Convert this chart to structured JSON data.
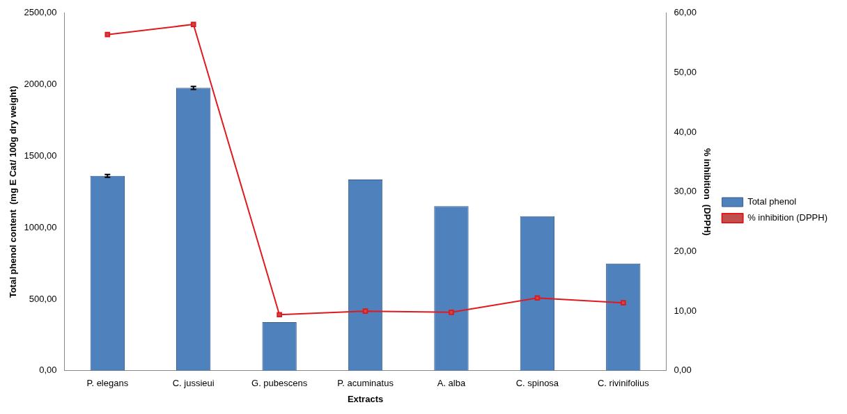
{
  "chart_data": {
    "type": "bar",
    "xlabel": "Extracts",
    "ylabel": "Total phenol content  (mg E Cat/ 100g dry weight)",
    "y2label": "% inhibition  (DPPH)",
    "categories": [
      "P. elegans",
      "C. jussieui",
      "G. pubescens",
      "P. acuminatus",
      "A. alba",
      "C. spinosa",
      "C. rivinifolius"
    ],
    "series": [
      {
        "name": "Total phenol",
        "color": "#4f81bd",
        "values": [
          1362,
          1977,
          339,
          1336,
          1150,
          1080,
          749
        ],
        "errors": [
          10,
          10,
          null,
          null,
          null,
          null,
          null
        ]
      },
      {
        "name": "% inhibition (DPPH)",
        "type": "line",
        "axis": "y2",
        "color": "#e0191d",
        "marker": "square",
        "values": [
          56.4,
          58.1,
          9.4,
          10.0,
          9.8,
          12.2,
          11.4
        ]
      }
    ],
    "ylim": [
      0,
      2500
    ],
    "yticks": [
      {
        "value": 0,
        "label": "0,00"
      },
      {
        "value": 500,
        "label": "500,00"
      },
      {
        "value": 1000,
        "label": "1000,00"
      },
      {
        "value": 1500,
        "label": "1500,00"
      },
      {
        "value": 2000,
        "label": "2000,00"
      },
      {
        "value": 2500,
        "label": "2500,00"
      }
    ],
    "y2lim": [
      0,
      60
    ],
    "y2ticks": [
      {
        "value": 0,
        "label": "0,00"
      },
      {
        "value": 10,
        "label": "10,00"
      },
      {
        "value": 20,
        "label": "20,00"
      },
      {
        "value": 30,
        "label": "30,00"
      },
      {
        "value": 40,
        "label": "40,00"
      },
      {
        "value": 50,
        "label": "50,00"
      },
      {
        "value": 60,
        "label": "60,00"
      }
    ],
    "grid": false,
    "legend": "right"
  }
}
